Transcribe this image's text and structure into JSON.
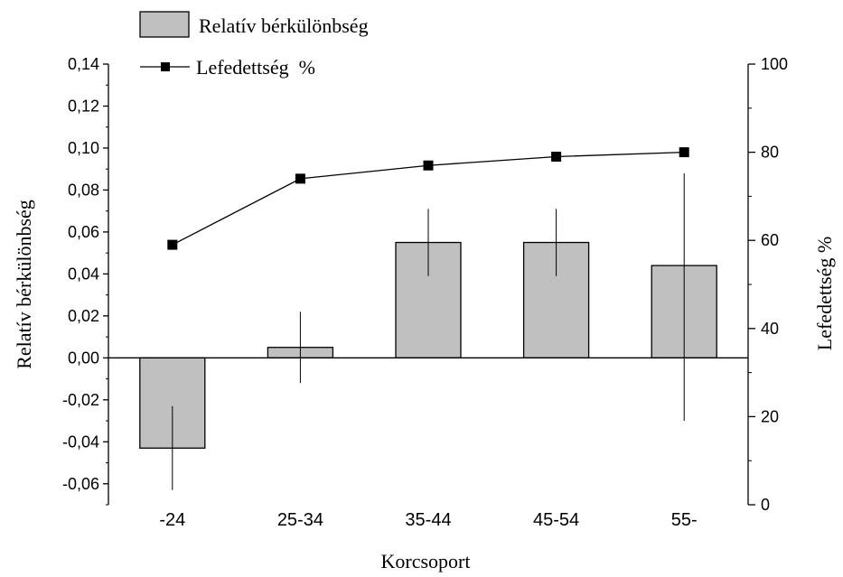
{
  "chart_data": {
    "type": "bar",
    "categories": [
      "-24",
      "25-34",
      "35-44",
      "45-54",
      "55-"
    ],
    "xlabel": "Korcsoport",
    "ylabel": "Relatív bérkülönbség",
    "y2label": "Lefedettség %",
    "ylim": [
      -0.07,
      0.14
    ],
    "y2lim": [
      0,
      100
    ],
    "y_ticks": [
      "-0,06",
      "-0,04",
      "-0,02",
      "0,00",
      "0,02",
      "0,04",
      "0,06",
      "0,08",
      "0,10",
      "0,12",
      "0,14"
    ],
    "y2_ticks": [
      "0",
      "20",
      "40",
      "60",
      "80",
      "100"
    ],
    "grid": false,
    "legend_position": "top-left",
    "series": [
      {
        "name": "Relatív bérkülönbség",
        "kind": "bar",
        "axis": "left",
        "values": [
          -0.043,
          0.005,
          0.055,
          0.055,
          0.044
        ],
        "error_low": [
          -0.063,
          -0.012,
          0.039,
          0.039,
          -0.03
        ],
        "error_high": [
          -0.023,
          0.022,
          0.071,
          0.071,
          0.088
        ]
      },
      {
        "name": "Lefedettség  %",
        "kind": "line",
        "axis": "right",
        "marker": "square",
        "values": [
          59,
          74,
          77,
          79,
          80
        ]
      }
    ]
  },
  "colors": {
    "bar_fill": "#c0c0c0",
    "line": "#000000",
    "marker": "#000000",
    "axis": "#000000"
  }
}
